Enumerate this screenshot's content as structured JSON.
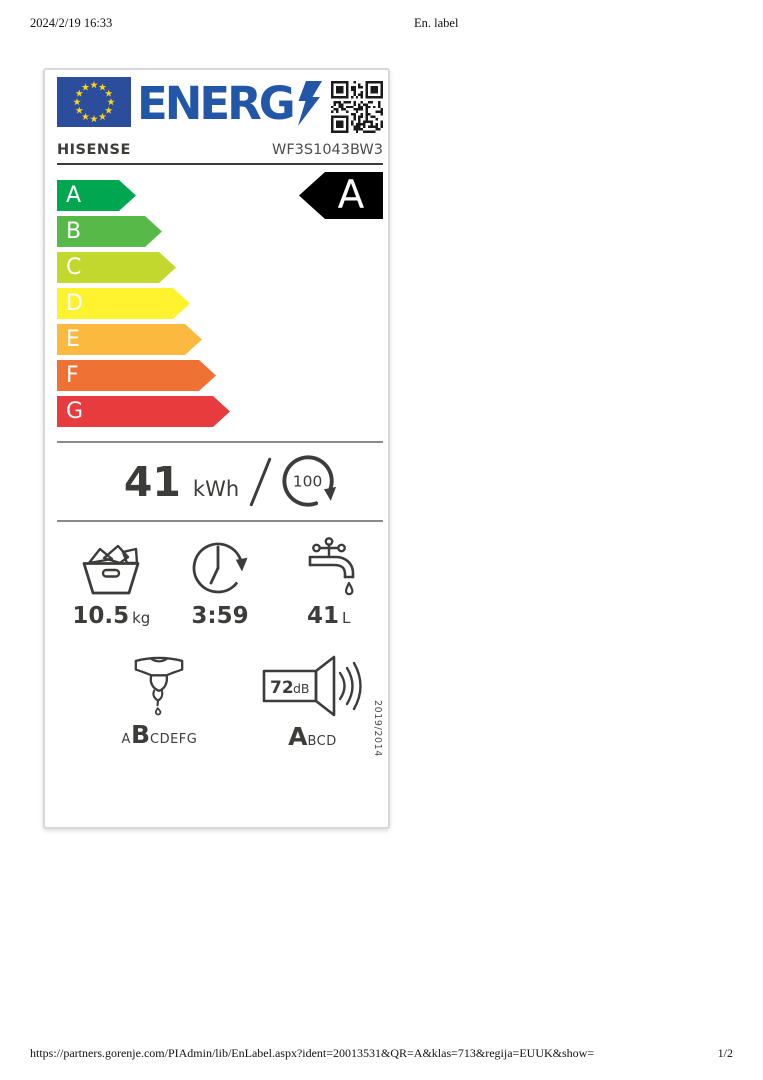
{
  "page": {
    "header": {
      "datetime": "2024/2/19 16:33",
      "title": "En. label"
    },
    "footer": {
      "url": "https://partners.gorenje.com/PIAdmin/lib/EnLabel.aspx?ident=20013531&QR=A&klas=713&regija=EUUK&show=",
      "page_indicator": "1/2"
    }
  },
  "label": {
    "logo": {
      "text": "ENERG"
    },
    "brand": "HISENSE",
    "model": "WF3S1043BW3",
    "rating": {
      "selected_class": "A",
      "classes": [
        {
          "letter": "A",
          "color": "#00a650"
        },
        {
          "letter": "B",
          "color": "#57b947"
        },
        {
          "letter": "C",
          "color": "#c2d82f"
        },
        {
          "letter": "D",
          "color": "#fff22e"
        },
        {
          "letter": "E",
          "color": "#fbba3f"
        },
        {
          "letter": "F",
          "color": "#ef7134"
        },
        {
          "letter": "G",
          "color": "#e83b3e"
        }
      ]
    },
    "energy_per_100_cycles": {
      "value": "41",
      "unit": "kWh",
      "cycles": "100"
    },
    "capacity": {
      "value": "10.5",
      "unit": "kg"
    },
    "program_duration": {
      "value": "3:59"
    },
    "water_consumption": {
      "value": "41",
      "unit": "L"
    },
    "spin_class": {
      "before": "A",
      "selected": "B",
      "after": "CDEFG"
    },
    "noise": {
      "value": "72",
      "unit": "dB",
      "selected": "A",
      "after": "BCD"
    },
    "regulation": "2019/2014"
  },
  "colors": {
    "accent_blue": "#2257a8",
    "flag_blue": "#2c4c9c",
    "star_yellow": "#ffd612",
    "text_dark": "#3c3c3b",
    "indicator_black": "#000000",
    "border_gray": "#d8d8d8"
  }
}
